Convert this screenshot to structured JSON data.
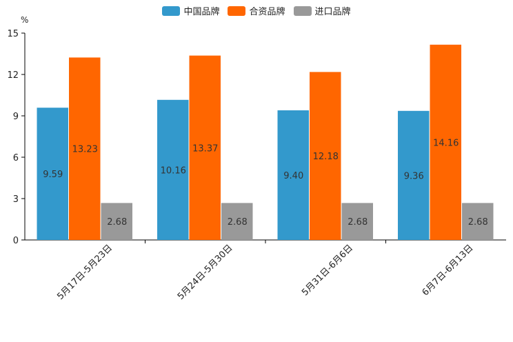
{
  "chart_data": {
    "type": "bar",
    "title": "",
    "xlabel": "",
    "ylabel": "%",
    "ylim": [
      0,
      15
    ],
    "yticks": [
      "0",
      "3",
      "6",
      "9",
      "12",
      "15"
    ],
    "categories": [
      "5月17日-5月23日",
      "5月24日-5月30日",
      "5月31日-6月6日",
      "6月7日-6月13日"
    ],
    "series": [
      {
        "name": "中国品牌",
        "color": "#3399cc",
        "values": [
          9.59,
          10.16,
          9.4,
          9.36
        ],
        "labels": [
          "9.59",
          "10.16",
          "9.40",
          "9.36"
        ]
      },
      {
        "name": "合资品牌",
        "color": "#ff6600",
        "values": [
          13.23,
          13.37,
          12.18,
          14.16
        ],
        "labels": [
          "13.23",
          "13.37",
          "12.18",
          "14.16"
        ]
      },
      {
        "name": "进口品牌",
        "color": "#999999",
        "values": [
          2.68,
          2.68,
          2.68,
          2.68
        ],
        "labels": [
          "2.68",
          "2.68",
          "2.68",
          "2.68"
        ]
      }
    ],
    "legend_position": "top-center"
  }
}
